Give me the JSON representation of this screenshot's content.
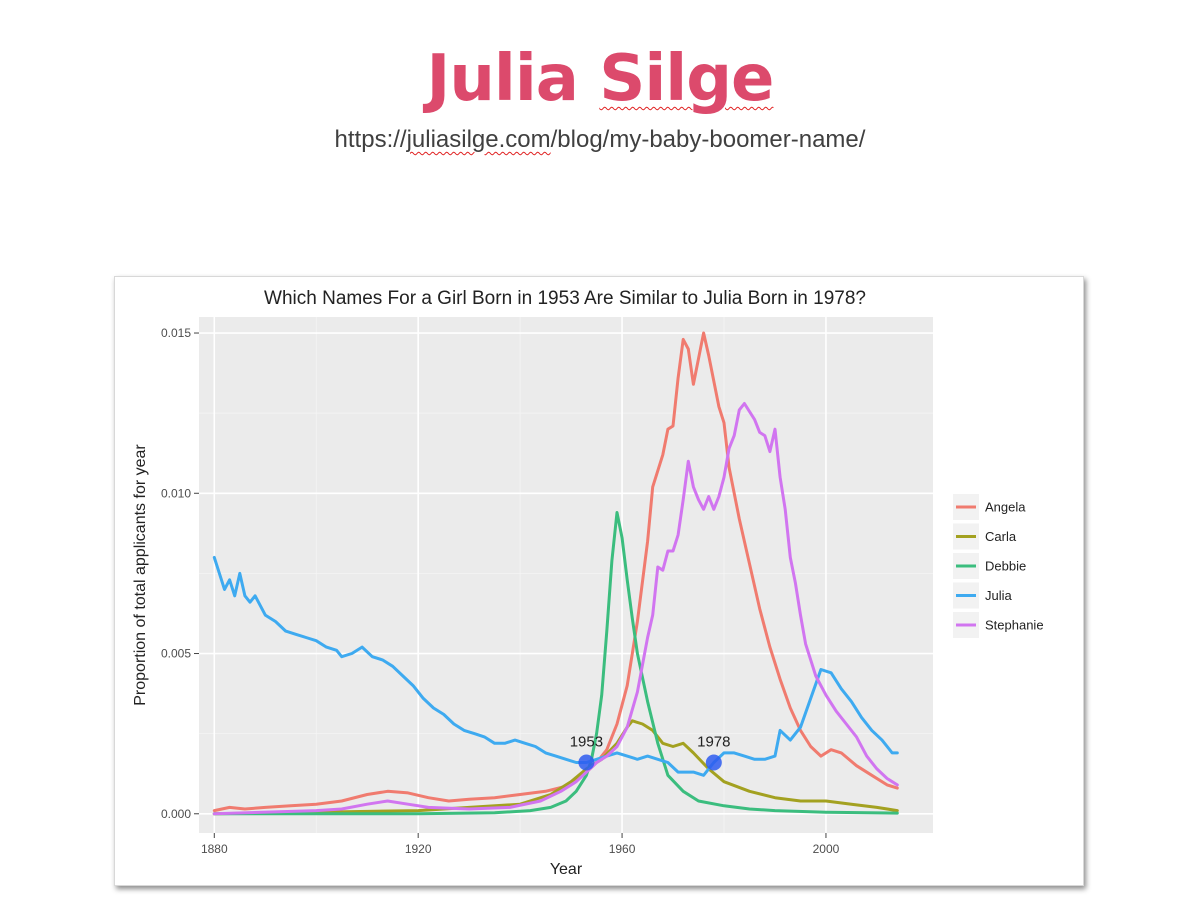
{
  "slide": {
    "title_part1": "Julia ",
    "title_part2": "Silge",
    "url_part1": "https://",
    "url_part2": "juliasilge.com",
    "url_part3": "/blog/my-baby-boomer-name/"
  },
  "chart_data": {
    "type": "line",
    "title": "Which Names For a Girl Born in 1953 Are Similar to Julia Born in 1978?",
    "xlabel": "Year",
    "ylabel": "Proportion of total applicants for year",
    "xlim": [
      1877,
      2021
    ],
    "ylim": [
      -0.0006,
      0.0155
    ],
    "x_ticks": [
      1880,
      1920,
      1960,
      2000
    ],
    "y_ticks": [
      0.0,
      0.005,
      0.01,
      0.015
    ],
    "y_tick_labels": [
      "0.000",
      "0.005",
      "0.010",
      "0.015"
    ],
    "grid": true,
    "legend_position": "right",
    "series": [
      {
        "name": "Angela",
        "color": "#f07b6f",
        "points": [
          [
            1880,
            0.0001
          ],
          [
            1883,
            0.0002
          ],
          [
            1886,
            0.00015
          ],
          [
            1890,
            0.0002
          ],
          [
            1895,
            0.00025
          ],
          [
            1900,
            0.0003
          ],
          [
            1905,
            0.0004
          ],
          [
            1910,
            0.0006
          ],
          [
            1914,
            0.0007
          ],
          [
            1918,
            0.00065
          ],
          [
            1922,
            0.0005
          ],
          [
            1926,
            0.0004
          ],
          [
            1930,
            0.00045
          ],
          [
            1935,
            0.0005
          ],
          [
            1940,
            0.0006
          ],
          [
            1945,
            0.0007
          ],
          [
            1950,
            0.0009
          ],
          [
            1953,
            0.0013
          ],
          [
            1955,
            0.0016
          ],
          [
            1957,
            0.002
          ],
          [
            1959,
            0.0028
          ],
          [
            1961,
            0.004
          ],
          [
            1963,
            0.006
          ],
          [
            1965,
            0.0085
          ],
          [
            1966,
            0.0102
          ],
          [
            1968,
            0.0112
          ],
          [
            1969,
            0.012
          ],
          [
            1970,
            0.0121
          ],
          [
            1971,
            0.0136
          ],
          [
            1972,
            0.0148
          ],
          [
            1973,
            0.0145
          ],
          [
            1974,
            0.0134
          ],
          [
            1975,
            0.0142
          ],
          [
            1976,
            0.015
          ],
          [
            1977,
            0.0143
          ],
          [
            1978,
            0.0135
          ],
          [
            1979,
            0.0127
          ],
          [
            1980,
            0.0122
          ],
          [
            1981,
            0.0108
          ],
          [
            1983,
            0.0092
          ],
          [
            1985,
            0.0078
          ],
          [
            1987,
            0.0064
          ],
          [
            1989,
            0.0052
          ],
          [
            1991,
            0.0042
          ],
          [
            1993,
            0.0033
          ],
          [
            1995,
            0.0026
          ],
          [
            1997,
            0.0021
          ],
          [
            1999,
            0.0018
          ],
          [
            2001,
            0.002
          ],
          [
            2003,
            0.0019
          ],
          [
            2006,
            0.0015
          ],
          [
            2009,
            0.0012
          ],
          [
            2012,
            0.0009
          ],
          [
            2014,
            0.0008
          ]
        ]
      },
      {
        "name": "Carla",
        "color": "#a3a120",
        "points": [
          [
            1880,
            0.0
          ],
          [
            1900,
            5e-05
          ],
          [
            1920,
            0.0001
          ],
          [
            1930,
            0.0002
          ],
          [
            1940,
            0.0003
          ],
          [
            1946,
            0.0006
          ],
          [
            1950,
            0.001
          ],
          [
            1953,
            0.0014
          ],
          [
            1956,
            0.0017
          ],
          [
            1959,
            0.0022
          ],
          [
            1961,
            0.0027
          ],
          [
            1962,
            0.0029
          ],
          [
            1964,
            0.0028
          ],
          [
            1966,
            0.0026
          ],
          [
            1968,
            0.0022
          ],
          [
            1970,
            0.0021
          ],
          [
            1972,
            0.0022
          ],
          [
            1974,
            0.0019
          ],
          [
            1977,
            0.0014
          ],
          [
            1980,
            0.001
          ],
          [
            1985,
            0.0007
          ],
          [
            1990,
            0.0005
          ],
          [
            1995,
            0.0004
          ],
          [
            2000,
            0.0004
          ],
          [
            2005,
            0.0003
          ],
          [
            2010,
            0.0002
          ],
          [
            2014,
            0.0001
          ]
        ]
      },
      {
        "name": "Debbie",
        "color": "#3bbd7e",
        "points": [
          [
            1880,
            0.0
          ],
          [
            1920,
            0.0
          ],
          [
            1935,
            3e-05
          ],
          [
            1942,
            0.0001
          ],
          [
            1946,
            0.0002
          ],
          [
            1949,
            0.0004
          ],
          [
            1951,
            0.0007
          ],
          [
            1953,
            0.0012
          ],
          [
            1954,
            0.0017
          ],
          [
            1955,
            0.0025
          ],
          [
            1956,
            0.0037
          ],
          [
            1957,
            0.0057
          ],
          [
            1958,
            0.0079
          ],
          [
            1959,
            0.0094
          ],
          [
            1960,
            0.0086
          ],
          [
            1961,
            0.0073
          ],
          [
            1962,
            0.0061
          ],
          [
            1963,
            0.005
          ],
          [
            1965,
            0.0035
          ],
          [
            1967,
            0.0022
          ],
          [
            1969,
            0.0012
          ],
          [
            1972,
            0.0007
          ],
          [
            1975,
            0.0004
          ],
          [
            1980,
            0.00025
          ],
          [
            1985,
            0.00015
          ],
          [
            1990,
            0.0001
          ],
          [
            2000,
            5e-05
          ],
          [
            2014,
            2e-05
          ]
        ]
      },
      {
        "name": "Julia",
        "color": "#3eaaf0",
        "points": [
          [
            1880,
            0.008
          ],
          [
            1881,
            0.0075
          ],
          [
            1882,
            0.007
          ],
          [
            1883,
            0.0073
          ],
          [
            1884,
            0.0068
          ],
          [
            1885,
            0.0075
          ],
          [
            1886,
            0.0068
          ],
          [
            1887,
            0.0066
          ],
          [
            1888,
            0.0068
          ],
          [
            1890,
            0.0062
          ],
          [
            1892,
            0.006
          ],
          [
            1894,
            0.0057
          ],
          [
            1896,
            0.0056
          ],
          [
            1898,
            0.0055
          ],
          [
            1900,
            0.0054
          ],
          [
            1902,
            0.0052
          ],
          [
            1904,
            0.0051
          ],
          [
            1905,
            0.0049
          ],
          [
            1907,
            0.005
          ],
          [
            1909,
            0.0052
          ],
          [
            1911,
            0.0049
          ],
          [
            1913,
            0.0048
          ],
          [
            1915,
            0.0046
          ],
          [
            1917,
            0.0043
          ],
          [
            1919,
            0.004
          ],
          [
            1921,
            0.0036
          ],
          [
            1923,
            0.0033
          ],
          [
            1925,
            0.0031
          ],
          [
            1927,
            0.0028
          ],
          [
            1929,
            0.0026
          ],
          [
            1931,
            0.0025
          ],
          [
            1933,
            0.0024
          ],
          [
            1935,
            0.0022
          ],
          [
            1937,
            0.0022
          ],
          [
            1939,
            0.0023
          ],
          [
            1941,
            0.0022
          ],
          [
            1943,
            0.0021
          ],
          [
            1945,
            0.0019
          ],
          [
            1947,
            0.0018
          ],
          [
            1949,
            0.0017
          ],
          [
            1951,
            0.0016
          ],
          [
            1953,
            0.0016
          ],
          [
            1955,
            0.0017
          ],
          [
            1957,
            0.0018
          ],
          [
            1959,
            0.0019
          ],
          [
            1961,
            0.0018
          ],
          [
            1963,
            0.0017
          ],
          [
            1965,
            0.0018
          ],
          [
            1967,
            0.0017
          ],
          [
            1969,
            0.0016
          ],
          [
            1971,
            0.0013
          ],
          [
            1974,
            0.0013
          ],
          [
            1976,
            0.0012
          ],
          [
            1978,
            0.0016
          ],
          [
            1980,
            0.0019
          ],
          [
            1982,
            0.0019
          ],
          [
            1984,
            0.0018
          ],
          [
            1986,
            0.0017
          ],
          [
            1988,
            0.0017
          ],
          [
            1990,
            0.0018
          ],
          [
            1991,
            0.0026
          ],
          [
            1993,
            0.0023
          ],
          [
            1995,
            0.0027
          ],
          [
            1997,
            0.0036
          ],
          [
            1999,
            0.0045
          ],
          [
            2001,
            0.0044
          ],
          [
            2003,
            0.0039
          ],
          [
            2005,
            0.0035
          ],
          [
            2007,
            0.003
          ],
          [
            2009,
            0.0026
          ],
          [
            2011,
            0.0023
          ],
          [
            2013,
            0.0019
          ],
          [
            2014,
            0.0019
          ]
        ]
      },
      {
        "name": "Stephanie",
        "color": "#d175f0",
        "points": [
          [
            1880,
            0.0
          ],
          [
            1900,
            0.0001
          ],
          [
            1905,
            0.00015
          ],
          [
            1910,
            0.0003
          ],
          [
            1914,
            0.0004
          ],
          [
            1918,
            0.0003
          ],
          [
            1922,
            0.0002
          ],
          [
            1930,
            0.00015
          ],
          [
            1938,
            0.0002
          ],
          [
            1944,
            0.0004
          ],
          [
            1948,
            0.0007
          ],
          [
            1951,
            0.001
          ],
          [
            1953,
            0.0013
          ],
          [
            1955,
            0.0016
          ],
          [
            1957,
            0.0018
          ],
          [
            1959,
            0.0021
          ],
          [
            1961,
            0.0027
          ],
          [
            1963,
            0.0038
          ],
          [
            1965,
            0.0055
          ],
          [
            1966,
            0.0062
          ],
          [
            1967,
            0.0077
          ],
          [
            1968,
            0.0076
          ],
          [
            1969,
            0.0082
          ],
          [
            1970,
            0.0082
          ],
          [
            1971,
            0.0087
          ],
          [
            1972,
            0.0098
          ],
          [
            1973,
            0.011
          ],
          [
            1974,
            0.0102
          ],
          [
            1975,
            0.0098
          ],
          [
            1976,
            0.0095
          ],
          [
            1977,
            0.0099
          ],
          [
            1978,
            0.0095
          ],
          [
            1979,
            0.0099
          ],
          [
            1980,
            0.0105
          ],
          [
            1981,
            0.0114
          ],
          [
            1982,
            0.0118
          ],
          [
            1983,
            0.0126
          ],
          [
            1984,
            0.0128
          ],
          [
            1986,
            0.0123
          ],
          [
            1987,
            0.0119
          ],
          [
            1988,
            0.0118
          ],
          [
            1989,
            0.0113
          ],
          [
            1990,
            0.012
          ],
          [
            1991,
            0.0105
          ],
          [
            1992,
            0.0095
          ],
          [
            1993,
            0.008
          ],
          [
            1994,
            0.0072
          ],
          [
            1995,
            0.0062
          ],
          [
            1996,
            0.0053
          ],
          [
            1997,
            0.0048
          ],
          [
            1998,
            0.0043
          ],
          [
            2000,
            0.0037
          ],
          [
            2002,
            0.0032
          ],
          [
            2004,
            0.0028
          ],
          [
            2006,
            0.0024
          ],
          [
            2008,
            0.0018
          ],
          [
            2010,
            0.0014
          ],
          [
            2012,
            0.0011
          ],
          [
            2014,
            0.0009
          ]
        ]
      }
    ],
    "annotations": [
      {
        "label": "1953",
        "x": 1953,
        "y": 0.0016
      },
      {
        "label": "1978",
        "x": 1978,
        "y": 0.0016
      }
    ]
  }
}
